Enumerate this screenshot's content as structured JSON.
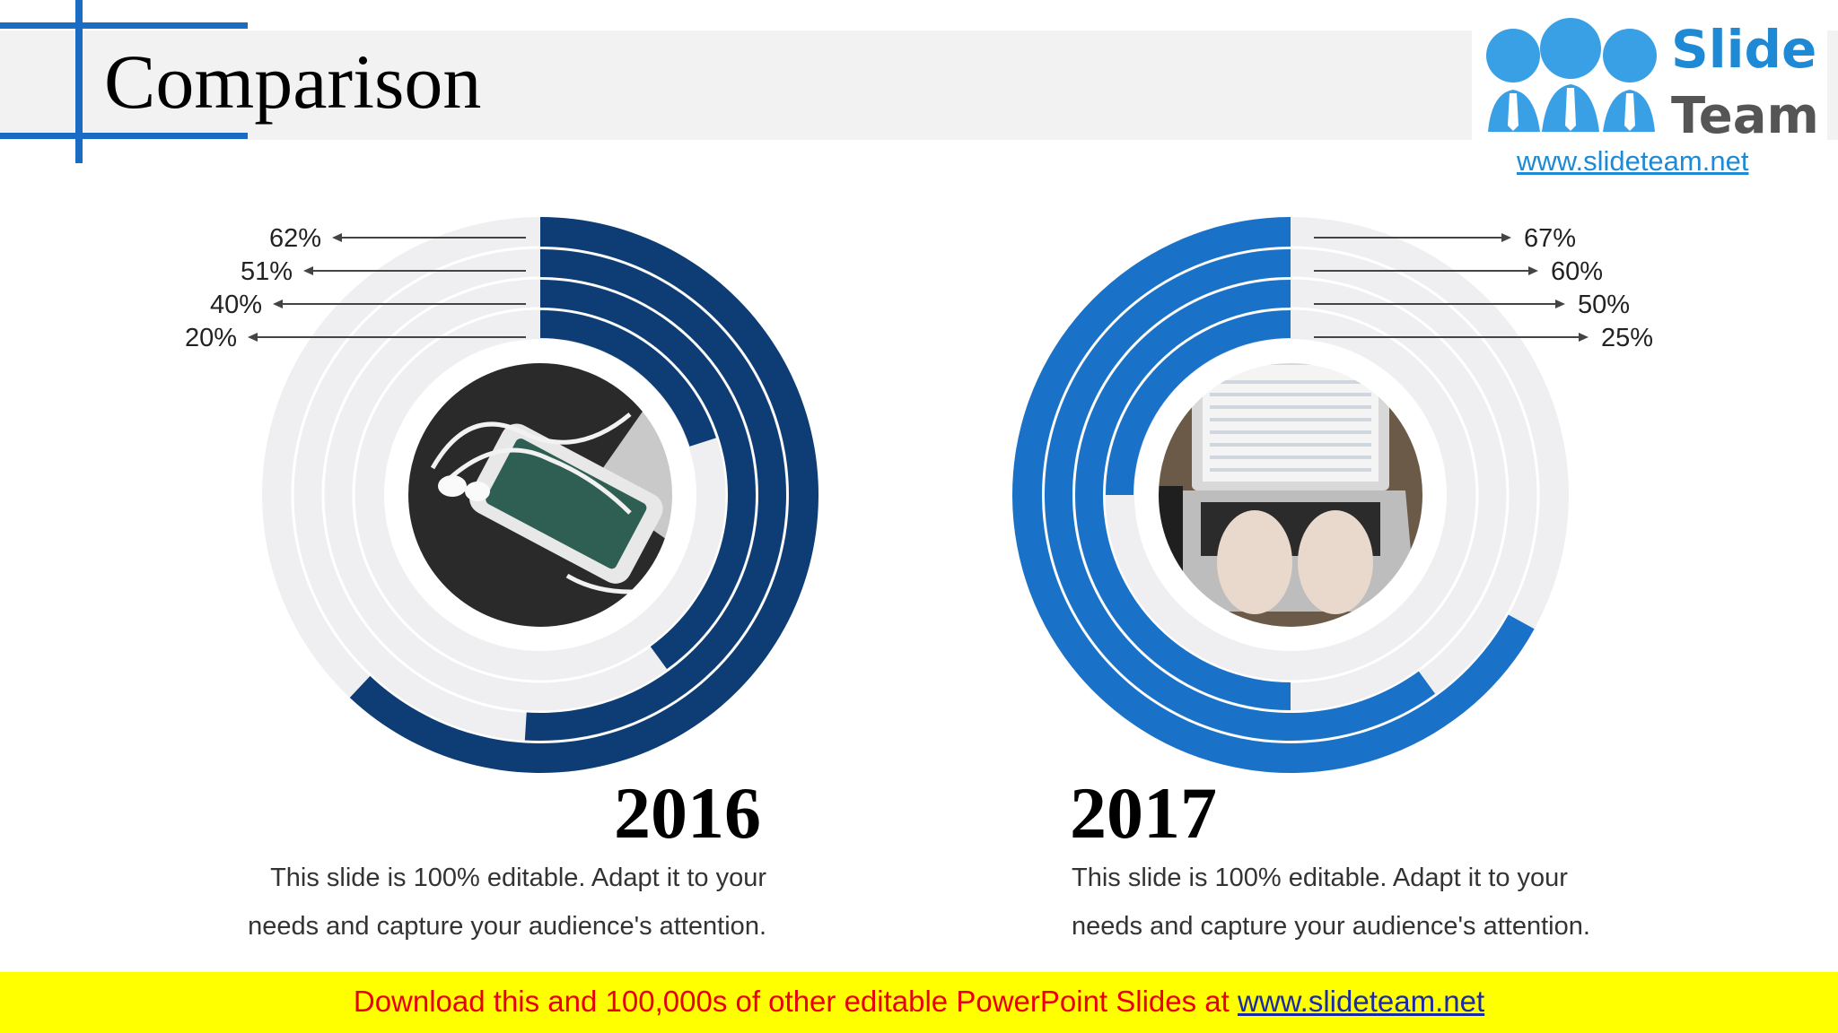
{
  "header": {
    "title": "Comparison"
  },
  "logo": {
    "word1": "Slide",
    "word2": "Team",
    "url": "www.slideteam.net"
  },
  "chart_data": [
    {
      "type": "radial-bar",
      "title": "2016",
      "values": [
        62,
        51,
        40,
        20
      ],
      "labels": [
        "62%",
        "51%",
        "40%",
        "20%"
      ],
      "max": 100,
      "color": "#0d3d74",
      "track_color": "#efeff1",
      "description": "This slide is 100% editable. Adapt it to your needs and capture your audience's attention.",
      "description_lines": [
        "This slide is 100% editable. Adapt it to your",
        "needs and capture your audience's attention."
      ],
      "image": "smartphone-with-earphones-photo"
    },
    {
      "type": "radial-bar",
      "title": "2017",
      "values": [
        67,
        60,
        50,
        25
      ],
      "labels": [
        "67%",
        "60%",
        "50%",
        "25%"
      ],
      "max": 100,
      "color": "#1a72c8",
      "track_color": "#efeff1",
      "description": "This slide is 100% editable. Adapt it to your needs and capture your audience's attention.",
      "description_lines": [
        "This slide is 100% editable. Adapt it to your",
        "needs and capture your audience's attention."
      ],
      "image": "laptop-typing-photo"
    }
  ],
  "footer": {
    "text": "Download this and 100,000s of other editable PowerPoint Slides at ",
    "link": "www.slideteam.net"
  }
}
